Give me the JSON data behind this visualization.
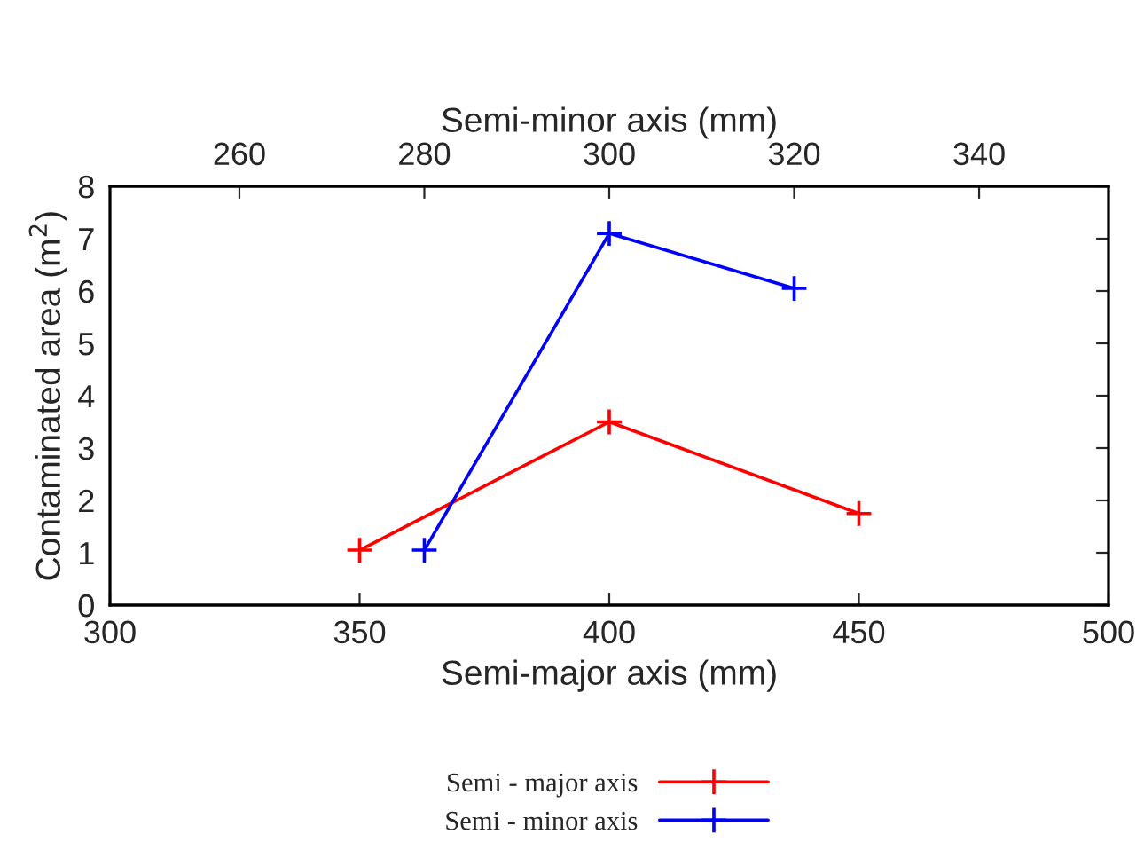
{
  "chart_data": {
    "type": "line",
    "xlabel": "Semi-major axis (mm)",
    "x2label": "Semi-minor axis (mm)",
    "ylabel": "Contaminated area (m$^{2}$)",
    "xlim": [
      300,
      500
    ],
    "xticks": [
      300,
      350,
      400,
      450,
      500
    ],
    "x2lim": [
      246,
      354
    ],
    "x2ticks": [
      260,
      280,
      300,
      320,
      340
    ],
    "ylim": [
      0,
      8
    ],
    "yticks": [
      0,
      1,
      2,
      3,
      4,
      5,
      6,
      7,
      8
    ],
    "marker": "cross",
    "legend": "bottom",
    "grid": false,
    "series": [
      {
        "name": "Semi - major axis",
        "color": "#ff0000",
        "x": [
          350,
          400,
          450
        ],
        "values": [
          1.05,
          3.5,
          1.75
        ]
      },
      {
        "name": "Semi - minor axis",
        "color": "#0000ff",
        "axis": "x2",
        "x": [
          280,
          300,
          320
        ],
        "values": [
          1.05,
          7.1,
          6.05
        ]
      }
    ]
  }
}
